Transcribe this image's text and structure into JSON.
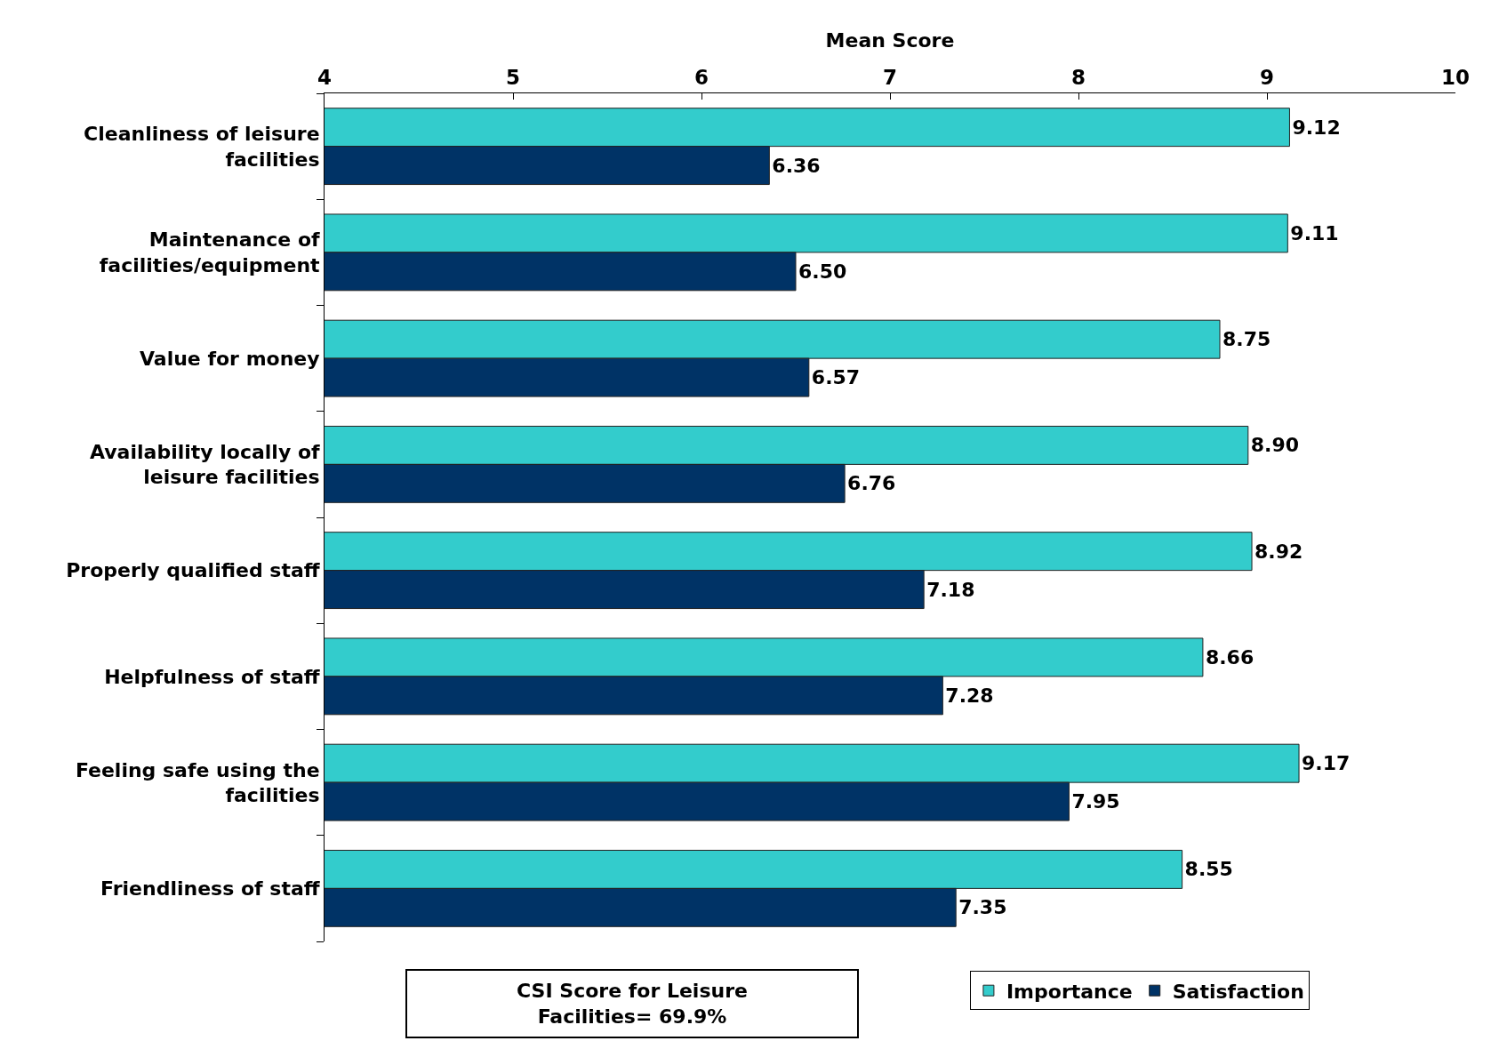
{
  "chart_data": {
    "type": "bar",
    "orientation": "horizontal",
    "xlabel": "Mean Score",
    "categories": [
      "Cleanliness of leisure facilities",
      "Maintenance of facilities/equipment",
      "Value for money",
      "Availability locally of leisure facilities",
      "Properly qualified staff",
      "Helpfulness of staff",
      "Feeling safe using the facilities",
      "Friendliness of staff"
    ],
    "series": [
      {
        "name": "Importance",
        "color": "#33cccc",
        "values": [
          9.12,
          9.11,
          8.75,
          8.9,
          8.92,
          8.66,
          9.17,
          8.55
        ],
        "value_labels": [
          "9.12",
          "9.11",
          "8.75",
          "8.90",
          "8.92",
          "8.66",
          "9.17",
          "8.55"
        ]
      },
      {
        "name": "Satisfaction",
        "color": "#003366",
        "values": [
          6.36,
          6.5,
          6.57,
          6.76,
          7.18,
          7.28,
          7.95,
          7.35
        ],
        "value_labels": [
          "6.36",
          "6.50",
          "6.57",
          "6.76",
          "7.18",
          "7.28",
          "7.95",
          "7.35"
        ]
      }
    ],
    "xlim": [
      4,
      10
    ],
    "xticks": [
      4,
      5,
      6,
      7,
      8,
      9,
      10
    ],
    "grid": false,
    "legend": "bottom",
    "annotations": [
      "CSI Score for Leisure Facilities= 69.9%"
    ]
  }
}
